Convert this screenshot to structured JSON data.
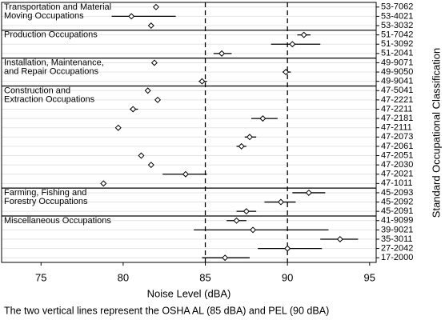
{
  "chart_data": {
    "type": "forest",
    "x_label": "Noise Level (dBA)",
    "y_label": "Standard Occupational Classification",
    "caption": "The two vertical lines represent the OSHA AL (85 dBA) and PEL (90 dBA)",
    "xlim": [
      72.6,
      95.4
    ],
    "xticks": [
      75,
      80,
      85,
      90,
      95
    ],
    "reference_lines": [
      85,
      90
    ],
    "grid": true,
    "color": "#000000",
    "groups": [
      {
        "label": [
          "Transportation and Material",
          "Moving Occupations"
        ]
      },
      {
        "label": [
          "Production Occupations"
        ]
      },
      {
        "label": [
          "Installation, Maintenance,",
          "and Repair Occupations"
        ]
      },
      {
        "label": [
          "Construction and",
          "Extraction Occupations"
        ]
      },
      {
        "label": [
          "Farming, Fishing and",
          "Forestry Occupations"
        ]
      },
      {
        "label": [
          "Miscellaneous Occupations"
        ]
      }
    ],
    "categories": [
      "53-7062",
      "53-4021",
      "53-3032",
      "51-7042",
      "51-3092",
      "51-2041",
      "49-9071",
      "49-9050",
      "49-9041",
      "47-5041",
      "47-2221",
      "47-2211",
      "47-2181",
      "47-2111",
      "47-2073",
      "47-2061",
      "47-2051",
      "47-2030",
      "47-2021",
      "47-1011",
      "45-2093",
      "45-2092",
      "45-2091",
      "41-9099",
      "39-9021",
      "35-3011",
      "27-2042",
      "17-2000"
    ],
    "values": [
      82.0,
      80.5,
      81.7,
      91.0,
      90.3,
      86.0,
      81.9,
      89.9,
      84.8,
      81.5,
      82.1,
      80.6,
      88.5,
      79.7,
      87.7,
      87.2,
      81.1,
      81.7,
      83.8,
      78.8,
      91.3,
      89.6,
      87.5,
      86.9,
      87.9,
      93.2,
      90.0,
      86.2
    ],
    "lower": [
      81.9,
      79.3,
      81.6,
      90.6,
      89.0,
      85.5,
      81.8,
      89.7,
      84.6,
      81.4,
      82.0,
      80.4,
      87.8,
      79.6,
      87.4,
      86.9,
      81.0,
      81.6,
      82.4,
      78.7,
      90.3,
      88.6,
      86.9,
      86.3,
      84.3,
      92.0,
      88.2,
      84.8
    ],
    "upper": [
      82.1,
      83.2,
      81.8,
      91.4,
      92.0,
      86.6,
      82.0,
      90.2,
      85.1,
      81.6,
      82.2,
      80.9,
      89.4,
      79.8,
      88.1,
      87.5,
      81.2,
      81.8,
      85.1,
      78.9,
      92.3,
      90.5,
      88.1,
      87.5,
      92.5,
      94.3,
      92.1,
      87.7
    ]
  }
}
